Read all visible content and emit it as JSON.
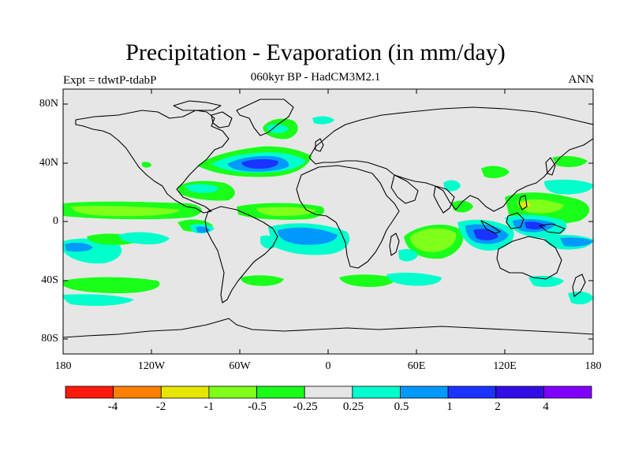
{
  "title": "Precipitation - Evaporation (in mm/day)",
  "subtitle": "060kyr BP - HadCM3M2.1",
  "experiment_label": "Expt = tdwtP-tdabP",
  "season_label": "ANN",
  "axes": {
    "lat_ticks": [
      "80N",
      "40N",
      "0",
      "40S",
      "80S"
    ],
    "lon_ticks": [
      "180",
      "120W",
      "60W",
      "0",
      "60E",
      "120E",
      "180"
    ]
  },
  "colorbar": {
    "colors": [
      "#ff1a0d",
      "#ff8000",
      "#e6e600",
      "#80ff1a",
      "#1aff1a",
      "#e6e6e6",
      "#00ffcc",
      "#0099ff",
      "#1a33ff",
      "#330de6",
      "#8000ff"
    ],
    "labels": [
      "-4",
      "-2",
      "-1",
      "-0.5",
      "-0.25",
      "0.25",
      "0.5",
      "1",
      "2",
      "4"
    ]
  },
  "colors": {
    "ocean_background": "#e6e6e6",
    "coastline": "#000000"
  }
}
